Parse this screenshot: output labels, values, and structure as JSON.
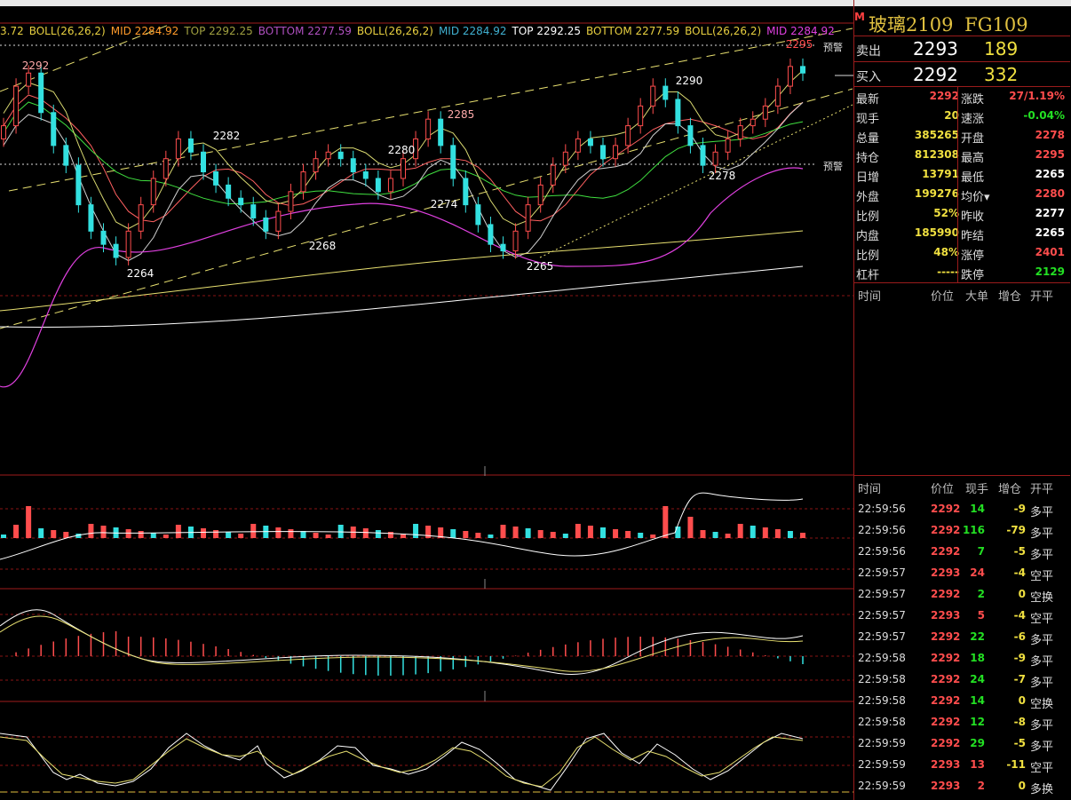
{
  "instrument": {
    "flag": "M",
    "name": "玻璃2109",
    "code": "FG109"
  },
  "legend": [
    {
      "text": "3.72",
      "color": "#e8d040"
    },
    {
      "text": "BOLL(26,26,2)",
      "color": "#e8d040"
    },
    {
      "text": "MID 2284.92",
      "color": "#ff9a2a"
    },
    {
      "text": "TOP 2292.25",
      "color": "#a0a040"
    },
    {
      "text": "BOTTOM 2277.59",
      "color": "#b050c0"
    },
    {
      "text": "BOLL(26,26,2)",
      "color": "#e8d040"
    },
    {
      "text": "MID 2284.92",
      "color": "#40b0d0"
    },
    {
      "text": "TOP 2292.25",
      "color": "#ffffff"
    },
    {
      "text": "BOTTOM 2277.59",
      "color": "#e8d040"
    },
    {
      "text": "BOLL(26,26,2)",
      "color": "#e8d040"
    },
    {
      "text": "MID 2284.92",
      "color": "#e040e0"
    }
  ],
  "alerts": {
    "upper": "预警",
    "lower": "预警"
  },
  "price_labels": [
    {
      "text": "2292",
      "color": "#ffaaaa"
    },
    {
      "text": "2282",
      "color": "#ffffff"
    },
    {
      "text": "2280",
      "color": "#ffffff"
    },
    {
      "text": "2285",
      "color": "#ffaaaa"
    },
    {
      "text": "2290",
      "color": "#ffffff"
    },
    {
      "text": "2295",
      "color": "#ff4d4d"
    },
    {
      "text": "2274",
      "color": "#ffffff"
    },
    {
      "text": "2278",
      "color": "#ffffff"
    },
    {
      "text": "2268",
      "color": "#ffffff"
    },
    {
      "text": "2264",
      "color": "#ffffff"
    },
    {
      "text": "2265",
      "color": "#ffffff"
    }
  ],
  "colors": {
    "up": "#ff4d4d",
    "down": "#33e0e0",
    "grid": "#8a1515",
    "accent": "#e0c040"
  },
  "bid_ask": {
    "sell": {
      "label": "卖出",
      "price": "2293",
      "volume": "189"
    },
    "buy": {
      "label": "买入",
      "price": "2292",
      "volume": "332"
    }
  },
  "quote": [
    {
      "l1": "最新",
      "v1": "2292",
      "c1": "red",
      "l2": "涨跌",
      "v2": "27/1.19%",
      "c2": "red"
    },
    {
      "l1": "现手",
      "v1": "20",
      "c1": "yellow",
      "l2": "速涨",
      "v2": "-0.04%",
      "c2": "green"
    },
    {
      "l1": "总量",
      "v1": "385265",
      "c1": "yellow",
      "l2": "开盘",
      "v2": "2278",
      "c2": "red"
    },
    {
      "l1": "持仓",
      "v1": "812308",
      "c1": "yellow",
      "l2": "最高",
      "v2": "2295",
      "c2": "red"
    },
    {
      "l1": "日增",
      "v1": "13791",
      "c1": "yellow",
      "l2": "最低",
      "v2": "2265",
      "c2": "white"
    },
    {
      "l1": "外盘",
      "v1": "199276",
      "c1": "yellow",
      "l2": "均价▾",
      "v2": "2280",
      "c2": "red"
    },
    {
      "l1": "比例",
      "v1": "52%",
      "c1": "yellow",
      "l2": "昨收",
      "v2": "2277",
      "c2": "white"
    },
    {
      "l1": "内盘",
      "v1": "185990",
      "c1": "yellow",
      "l2": "昨结",
      "v2": "2265",
      "c2": "white"
    },
    {
      "l1": "比例",
      "v1": "48%",
      "c1": "yellow",
      "l2": "涨停",
      "v2": "2401",
      "c2": "red"
    },
    {
      "l1": "杠杆",
      "v1": "-----",
      "c1": "yellow",
      "l2": "跌停",
      "v2": "2129",
      "c2": "green"
    }
  ],
  "big_order_header": [
    "时间",
    "价位",
    "大单",
    "增仓",
    "开平"
  ],
  "tick_header": [
    "时间",
    "价位",
    "现手",
    "增仓",
    "开平"
  ],
  "ticks": [
    {
      "time": "22:59:56",
      "price": "2292",
      "vol": "14",
      "vc": "green",
      "oi": "-9",
      "type": "多平"
    },
    {
      "time": "22:59:56",
      "price": "2292",
      "vol": "116",
      "vc": "green",
      "oi": "-79",
      "type": "多平"
    },
    {
      "time": "22:59:56",
      "price": "2292",
      "vol": "7",
      "vc": "green",
      "oi": "-5",
      "type": "多平"
    },
    {
      "time": "22:59:57",
      "price": "2293",
      "vol": "24",
      "vc": "red",
      "oi": "-4",
      "type": "空平"
    },
    {
      "time": "22:59:57",
      "price": "2292",
      "vol": "2",
      "vc": "green",
      "oi": "0",
      "type": "空换"
    },
    {
      "time": "22:59:57",
      "price": "2293",
      "vol": "5",
      "vc": "red",
      "oi": "-4",
      "type": "空平"
    },
    {
      "time": "22:59:57",
      "price": "2292",
      "vol": "22",
      "vc": "green",
      "oi": "-6",
      "type": "多平"
    },
    {
      "time": "22:59:58",
      "price": "2292",
      "vol": "18",
      "vc": "green",
      "oi": "-9",
      "type": "多平"
    },
    {
      "time": "22:59:58",
      "price": "2292",
      "vol": "24",
      "vc": "green",
      "oi": "-7",
      "type": "多平"
    },
    {
      "time": "22:59:58",
      "price": "2292",
      "vol": "14",
      "vc": "green",
      "oi": "0",
      "type": "空换"
    },
    {
      "time": "22:59:58",
      "price": "2292",
      "vol": "12",
      "vc": "green",
      "oi": "-8",
      "type": "多平"
    },
    {
      "time": "22:59:59",
      "price": "2292",
      "vol": "29",
      "vc": "green",
      "oi": "-5",
      "type": "多平"
    },
    {
      "time": "22:59:59",
      "price": "2293",
      "vol": "13",
      "vc": "red",
      "oi": "-11",
      "type": "空平"
    },
    {
      "time": "22:59:59",
      "price": "2293",
      "vol": "2",
      "vc": "red",
      "oi": "0",
      "type": "多换"
    }
  ],
  "chart_data": {
    "type": "candlestick",
    "title": "",
    "ylim": [
      2250,
      2300
    ],
    "notable_prices": {
      "2292": "high left",
      "2264": "low",
      "2282": "peak",
      "2268": "low",
      "2280": "peak",
      "2274": "low",
      "2285": "peak",
      "2265": "low",
      "2290": "peak",
      "2278": "low",
      "2295": "high right"
    },
    "close_path": [
      2284,
      2290,
      2292,
      2286,
      2281,
      2278,
      2272,
      2268,
      2266,
      2264,
      2268,
      2272,
      2276,
      2279,
      2282,
      2280,
      2277,
      2275,
      2273,
      2272,
      2270,
      2268,
      2271,
      2274,
      2277,
      2279,
      2280,
      2279,
      2277,
      2276,
      2274,
      2276,
      2279,
      2282,
      2285,
      2281,
      2276,
      2272,
      2269,
      2266,
      2265,
      2268,
      2272,
      2275,
      2278,
      2280,
      2282,
      2281,
      2279,
      2281,
      2284,
      2287,
      2290,
      2288,
      2284,
      2281,
      2278,
      2280,
      2282,
      2284,
      2285,
      2287,
      2290,
      2293,
      2292
    ],
    "grid": true
  }
}
